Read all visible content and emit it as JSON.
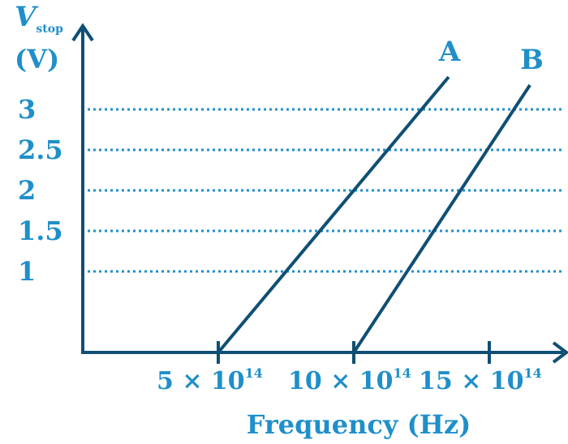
{
  "chart_data": {
    "type": "line",
    "ylabel_main": "V",
    "ylabel_sub": "stop",
    "ylabel_unit": "(V)",
    "xlabel": "Frequency (Hz)",
    "y_ticks": [
      "3",
      "2.5",
      "2",
      "1.5",
      "1"
    ],
    "y_tick_values": [
      3,
      2.5,
      2,
      1.5,
      1
    ],
    "x_ticks": [
      {
        "value": 5,
        "text": "5 × 10",
        "exp": "14"
      },
      {
        "value": 10,
        "text": "10 × 10",
        "exp": "14"
      },
      {
        "value": 15,
        "text": "15 × 10",
        "exp": "14"
      }
    ],
    "x_unit_note": "frequency values in units of 10^14 Hz",
    "xlim": [
      0,
      18
    ],
    "ylim": [
      0,
      3.5
    ],
    "grid": "horizontal dotted lines at y ticks",
    "series": [
      {
        "name": "A",
        "points": [
          [
            5,
            0
          ],
          [
            13.5,
            3.4
          ]
        ]
      },
      {
        "name": "B",
        "points": [
          [
            10,
            0
          ],
          [
            16.5,
            3.3
          ]
        ]
      }
    ],
    "colors": {
      "text": "#1f8fc9",
      "lines": "#0f4f74",
      "grid": "#1f8fc9"
    }
  }
}
